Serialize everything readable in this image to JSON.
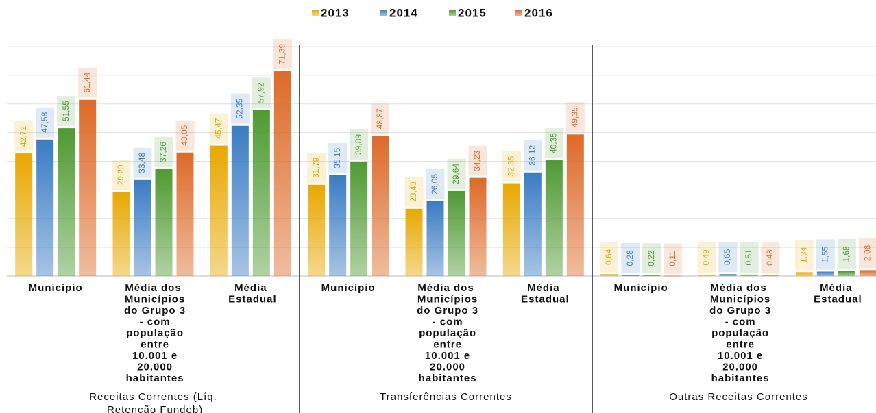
{
  "chart_data": {
    "type": "bar",
    "groups": [
      "Receitas Correntes (Líq. Retenção Fundeb)",
      "Transferências Correntes",
      "Outras Receitas Correntes"
    ],
    "categories": [
      "Município",
      "Média dos Municípios do Grupo 3 - com população entre 10.001 e 20.000 habitantes",
      "Média Estadual",
      "Município",
      "Média dos Municípios do Grupo 3 - com população entre 10.001 e 20.000 habitantes",
      "Média Estadual",
      "Município",
      "Média dos Municípios do Grupo 3 - com população entre 10.001 e 20.000 habitantes",
      "Média Estadual"
    ],
    "series": [
      {
        "name": "2013",
        "color": "#e8a800",
        "values": [
          42.72,
          29.29,
          45.47,
          31.79,
          23.43,
          32.35,
          0.64,
          0.49,
          1.34
        ],
        "value_labels": [
          "42,72",
          "29,29",
          "45,47",
          "31,79",
          "23,43",
          "32,35",
          "0,64",
          "0,49",
          "1,34"
        ]
      },
      {
        "name": "2014",
        "color": "#3a7cc4",
        "values": [
          47.58,
          33.48,
          52.35,
          35.15,
          26.05,
          36.12,
          0.28,
          0.65,
          1.55
        ],
        "value_labels": [
          "47,58",
          "33,48",
          "52,35",
          "35,15",
          "26,05",
          "36,12",
          "0,28",
          "0,65",
          "1,55"
        ]
      },
      {
        "name": "2015",
        "color": "#4f9a32",
        "values": [
          51.55,
          37.26,
          57.92,
          39.89,
          29.64,
          40.35,
          0.22,
          0.51,
          1.68
        ],
        "value_labels": [
          "51,55",
          "37,26",
          "57,92",
          "39,89",
          "29,64",
          "40,35",
          "0,22",
          "0,51",
          "1,68"
        ]
      },
      {
        "name": "2016",
        "color": "#dd6a28",
        "values": [
          61.44,
          43.05,
          71.39,
          48.87,
          34.23,
          49.35,
          0.11,
          0.43,
          2.06
        ],
        "value_labels": [
          "61,44",
          "43,05",
          "71,39",
          "48,87",
          "34,23",
          "49,35",
          "0,11",
          "0,43",
          "2,06"
        ]
      }
    ],
    "ylim": [
      0,
      80
    ],
    "yticks": [
      0,
      10,
      20,
      30,
      40,
      50,
      60,
      70,
      80
    ],
    "grid": true
  }
}
